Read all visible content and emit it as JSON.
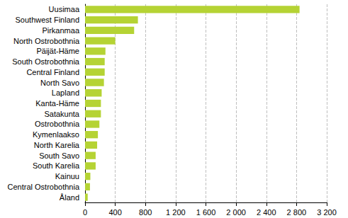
{
  "chart_data": {
    "type": "bar",
    "orientation": "horizontal",
    "categories": [
      "Uusimaa",
      "Southwest Finland",
      "Pirkanmaa",
      "North Ostrobothnia",
      "Päijät-Häme",
      "South Ostrobothnia",
      "Central Finland",
      "North Savo",
      "Lapland",
      "Kanta-Häme",
      "Satakunta",
      "Ostrobothnia",
      "Kymenlaakso",
      "North Karelia",
      "South Savo",
      "South Karelia",
      "Kainuu",
      "Central Ostrobothnia",
      "Åland"
    ],
    "values": [
      2840,
      700,
      650,
      400,
      270,
      260,
      260,
      250,
      220,
      210,
      210,
      190,
      170,
      160,
      140,
      140,
      70,
      65,
      35
    ],
    "color": "#b5d334",
    "xlim": [
      0,
      3200
    ],
    "xticks": [
      0,
      400,
      800,
      {
        "value": 1200,
        "label": "1 200"
      },
      {
        "value": 1600,
        "label": "1 600"
      },
      {
        "value": 2000,
        "label": "2 000"
      },
      {
        "value": 2400,
        "label": "2 400"
      },
      {
        "value": 2800,
        "label": "2 800"
      },
      {
        "value": 3200,
        "label": "3 200"
      }
    ],
    "grid": true
  }
}
